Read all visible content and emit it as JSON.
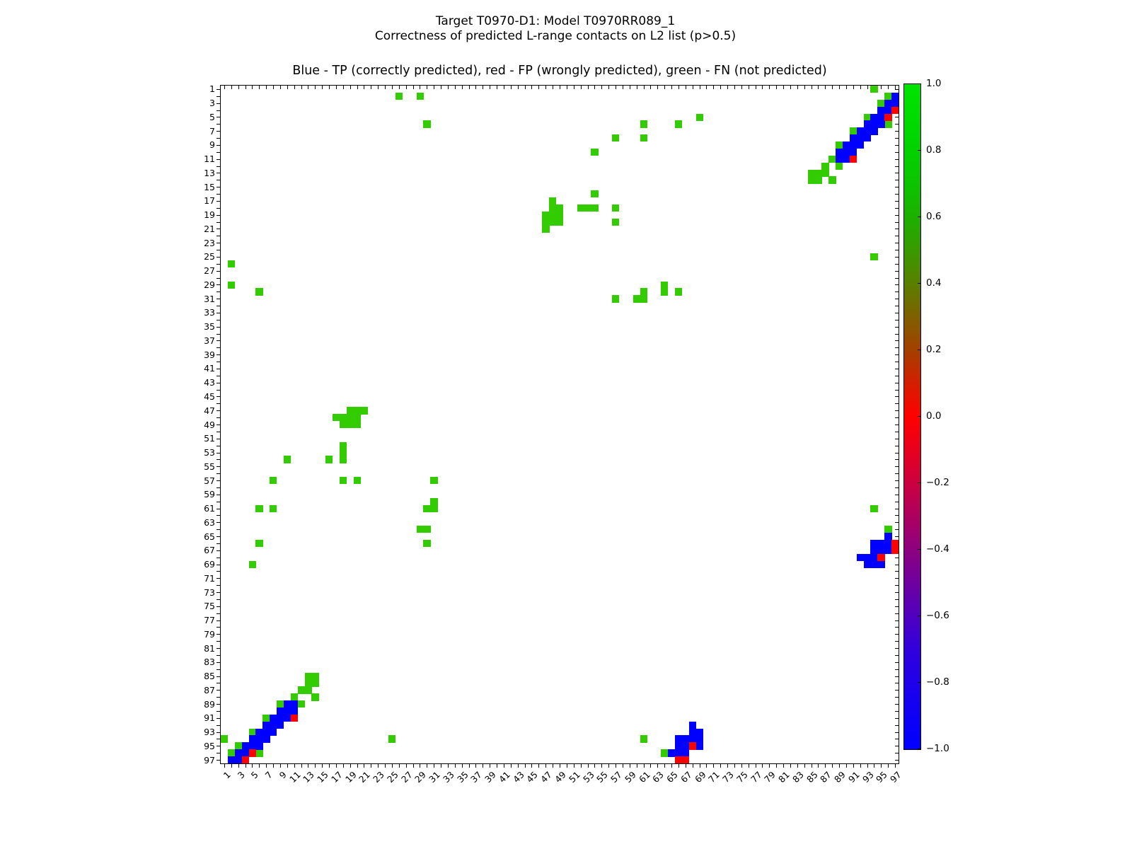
{
  "title": {
    "line1": "Target T0970-D1: Model T0970RR089_1",
    "line2": "Correctness of predicted L-range contacts on L2 list (p>0.5)"
  },
  "chart_data": {
    "type": "heatmap",
    "title": "Target T0970-D1: Model T0970RR089_1",
    "subtitle": "Correctness of predicted L-range contacts on L2 list (p>0.5)",
    "axes_note": "Blue - TP (correctly predicted), red - FP (wrongly predicted), green - FN (not predicted)",
    "x_range": [
      1,
      97
    ],
    "y_range": [
      1,
      97
    ],
    "grid": false,
    "tick_values": [
      1,
      3,
      5,
      7,
      9,
      11,
      13,
      15,
      17,
      19,
      21,
      23,
      25,
      27,
      29,
      31,
      33,
      35,
      37,
      39,
      41,
      43,
      45,
      47,
      49,
      51,
      53,
      55,
      57,
      59,
      61,
      63,
      65,
      67,
      69,
      71,
      73,
      75,
      77,
      79,
      81,
      83,
      85,
      87,
      89,
      91,
      93,
      95,
      97
    ],
    "classes": {
      "tp": {
        "label": "TP (correctly predicted)",
        "color": "#0000ff"
      },
      "fp": {
        "label": "FP (wrongly predicted)",
        "color": "#ff0000"
      },
      "fn": {
        "label": "FN (not predicted)",
        "color": "#33cc00"
      }
    },
    "cells": {
      "fn": [
        [
          1,
          94
        ],
        [
          2,
          26
        ],
        [
          2,
          29
        ],
        [
          2,
          96
        ],
        [
          3,
          95
        ],
        [
          5,
          69
        ],
        [
          5,
          93
        ],
        [
          6,
          30
        ],
        [
          6,
          61
        ],
        [
          6,
          66
        ],
        [
          6,
          96
        ],
        [
          7,
          91
        ],
        [
          8,
          57
        ],
        [
          8,
          61
        ],
        [
          9,
          89
        ],
        [
          10,
          54
        ],
        [
          11,
          88
        ],
        [
          12,
          87
        ],
        [
          12,
          89
        ],
        [
          13,
          85
        ],
        [
          13,
          86
        ],
        [
          13,
          87
        ],
        [
          14,
          85
        ],
        [
          14,
          86
        ],
        [
          14,
          88
        ],
        [
          16,
          54
        ],
        [
          17,
          48
        ],
        [
          18,
          48
        ],
        [
          18,
          49
        ],
        [
          18,
          52
        ],
        [
          18,
          53
        ],
        [
          18,
          54
        ],
        [
          18,
          57
        ],
        [
          19,
          47
        ],
        [
          19,
          48
        ],
        [
          19,
          49
        ],
        [
          20,
          47
        ],
        [
          20,
          48
        ],
        [
          20,
          49
        ],
        [
          20,
          57
        ],
        [
          21,
          47
        ],
        [
          25,
          94
        ],
        [
          29,
          64
        ],
        [
          30,
          61
        ],
        [
          30,
          64
        ],
        [
          30,
          66
        ],
        [
          31,
          57
        ],
        [
          31,
          60
        ],
        [
          31,
          61
        ],
        [
          26,
          2
        ],
        [
          29,
          2
        ],
        [
          30,
          6
        ],
        [
          47,
          19
        ],
        [
          47,
          20
        ],
        [
          47,
          21
        ],
        [
          48,
          17
        ],
        [
          48,
          18
        ],
        [
          48,
          19
        ],
        [
          48,
          20
        ],
        [
          49,
          18
        ],
        [
          49,
          19
        ],
        [
          49,
          20
        ],
        [
          52,
          18
        ],
        [
          53,
          18
        ],
        [
          54,
          10
        ],
        [
          54,
          16
        ],
        [
          54,
          18
        ],
        [
          57,
          8
        ],
        [
          57,
          18
        ],
        [
          57,
          20
        ],
        [
          57,
          31
        ],
        [
          60,
          31
        ],
        [
          61,
          6
        ],
        [
          61,
          8
        ],
        [
          61,
          30
        ],
        [
          61,
          31
        ],
        [
          61,
          94
        ],
        [
          64,
          29
        ],
        [
          64,
          30
        ],
        [
          64,
          96
        ],
        [
          66,
          6
        ],
        [
          66,
          30
        ],
        [
          69,
          5
        ],
        [
          85,
          13
        ],
        [
          85,
          14
        ],
        [
          86,
          13
        ],
        [
          86,
          14
        ],
        [
          87,
          12
        ],
        [
          87,
          13
        ],
        [
          88,
          11
        ],
        [
          88,
          14
        ],
        [
          89,
          9
        ],
        [
          89,
          12
        ],
        [
          91,
          7
        ],
        [
          93,
          5
        ],
        [
          94,
          1
        ],
        [
          94,
          25
        ],
        [
          94,
          61
        ],
        [
          95,
          3
        ],
        [
          96,
          2
        ],
        [
          96,
          6
        ],
        [
          96,
          64
        ]
      ],
      "tp": [
        [
          2,
          97
        ],
        [
          3,
          96
        ],
        [
          3,
          97
        ],
        [
          4,
          95
        ],
        [
          4,
          96
        ],
        [
          5,
          94
        ],
        [
          5,
          95
        ],
        [
          6,
          93
        ],
        [
          6,
          94
        ],
        [
          6,
          95
        ],
        [
          7,
          92
        ],
        [
          7,
          93
        ],
        [
          7,
          94
        ],
        [
          8,
          91
        ],
        [
          8,
          92
        ],
        [
          8,
          93
        ],
        [
          9,
          90
        ],
        [
          9,
          91
        ],
        [
          9,
          92
        ],
        [
          10,
          89
        ],
        [
          10,
          90
        ],
        [
          10,
          91
        ],
        [
          11,
          89
        ],
        [
          11,
          90
        ],
        [
          65,
          96
        ],
        [
          66,
          94
        ],
        [
          66,
          95
        ],
        [
          66,
          96
        ],
        [
          67,
          94
        ],
        [
          67,
          95
        ],
        [
          67,
          96
        ],
        [
          68,
          92
        ],
        [
          68,
          93
        ],
        [
          68,
          94
        ],
        [
          69,
          93
        ],
        [
          69,
          94
        ],
        [
          69,
          95
        ],
        [
          89,
          10
        ],
        [
          89,
          11
        ],
        [
          90,
          9
        ],
        [
          90,
          10
        ],
        [
          90,
          11
        ],
        [
          91,
          8
        ],
        [
          91,
          9
        ],
        [
          91,
          10
        ],
        [
          92,
          7
        ],
        [
          92,
          8
        ],
        [
          92,
          9
        ],
        [
          93,
          6
        ],
        [
          93,
          7
        ],
        [
          93,
          8
        ],
        [
          94,
          5
        ],
        [
          94,
          6
        ],
        [
          94,
          7
        ],
        [
          95,
          4
        ],
        [
          95,
          5
        ],
        [
          95,
          6
        ],
        [
          96,
          3
        ],
        [
          96,
          4
        ],
        [
          97,
          2
        ],
        [
          97,
          3
        ],
        [
          92,
          68
        ],
        [
          93,
          68
        ],
        [
          93,
          69
        ],
        [
          94,
          66
        ],
        [
          94,
          67
        ],
        [
          94,
          68
        ],
        [
          94,
          69
        ],
        [
          95,
          66
        ],
        [
          95,
          67
        ],
        [
          95,
          69
        ],
        [
          96,
          65
        ],
        [
          96,
          66
        ],
        [
          96,
          67
        ]
      ],
      "fp": [
        [
          4,
          97
        ],
        [
          5,
          96
        ],
        [
          11,
          91
        ],
        [
          66,
          97
        ],
        [
          67,
          97
        ],
        [
          68,
          95
        ],
        [
          91,
          11
        ],
        [
          95,
          68
        ],
        [
          96,
          5
        ],
        [
          97,
          4
        ],
        [
          97,
          66
        ],
        [
          97,
          67
        ]
      ]
    },
    "colorbar": {
      "min": -1.0,
      "max": 1.0,
      "tick_labels": [
        "1.0",
        "0.8",
        "0.6",
        "0.4",
        "0.2",
        "0.0",
        "−0.2",
        "−0.4",
        "−0.6",
        "−0.8",
        "−1.0"
      ],
      "gradient": [
        [
          "0%",
          "#00e400"
        ],
        [
          "8%",
          "#00d600"
        ],
        [
          "15%",
          "#0cc400"
        ],
        [
          "20%",
          "#1cb000"
        ],
        [
          "25%",
          "#389a00"
        ],
        [
          "30%",
          "#5a7f00"
        ],
        [
          "35%",
          "#7f6000"
        ],
        [
          "40%",
          "#a34000"
        ],
        [
          "45%",
          "#d51e00"
        ],
        [
          "50%",
          "#ff0000"
        ],
        [
          "55%",
          "#e8001e"
        ],
        [
          "60%",
          "#cc0040"
        ],
        [
          "65%",
          "#ad0060"
        ],
        [
          "70%",
          "#8e0080"
        ],
        [
          "75%",
          "#6f00a0"
        ],
        [
          "80%",
          "#5000c0"
        ],
        [
          "85%",
          "#3200dd"
        ],
        [
          "92%",
          "#1800ef"
        ],
        [
          "100%",
          "#0000ff"
        ]
      ]
    }
  }
}
